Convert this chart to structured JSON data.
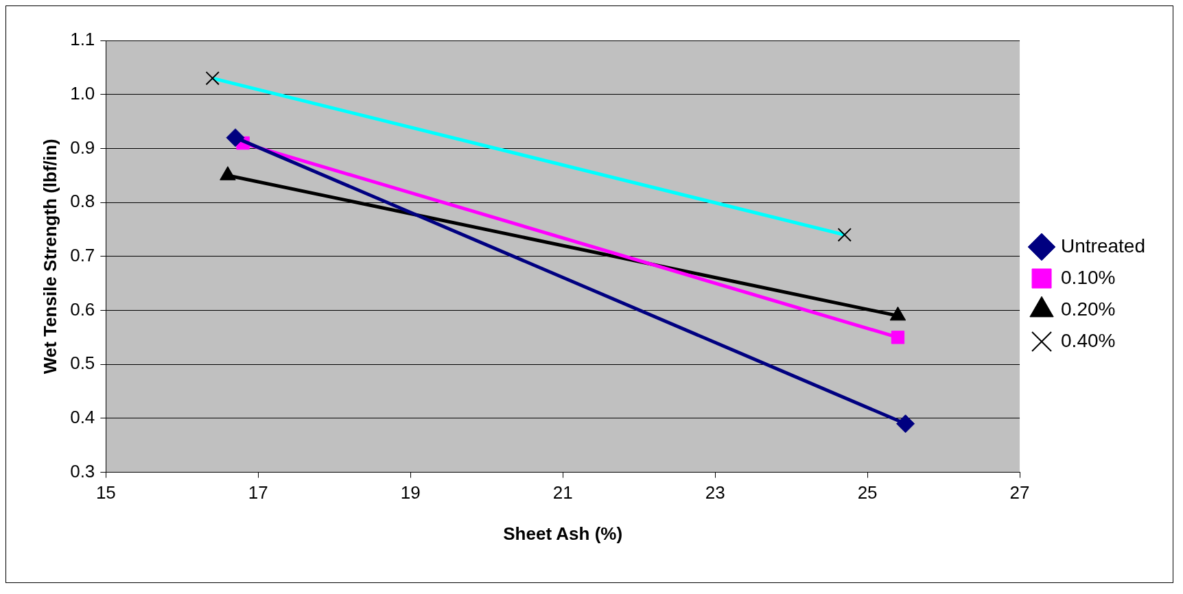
{
  "chart_data": {
    "type": "line",
    "xlabel": "Sheet Ash (%)",
    "ylabel": "Wet Tensile Strength (lbf/in)",
    "xlim": [
      15,
      27
    ],
    "xticks": [
      15,
      17,
      19,
      21,
      23,
      25,
      27
    ],
    "ylim": [
      0.3,
      1.1
    ],
    "yticks": [
      {
        "value": 0.3,
        "label": "0.3"
      },
      {
        "value": 0.4,
        "label": "0.4"
      },
      {
        "value": 0.5,
        "label": "0.5"
      },
      {
        "value": 0.6,
        "label": "0.6"
      },
      {
        "value": 0.7,
        "label": "0.7"
      },
      {
        "value": 0.8,
        "label": "0.8"
      },
      {
        "value": 0.9,
        "label": "0.9"
      },
      {
        "value": 1.0,
        "label": "1.0"
      },
      {
        "value": 1.1,
        "label": "1.1"
      }
    ],
    "grid": "y",
    "legend": "right",
    "series": [
      {
        "name": "Untreated",
        "color": "#000080",
        "marker": "diamond",
        "x": [
          16.7,
          25.5
        ],
        "values": [
          0.92,
          0.39
        ]
      },
      {
        "name": "0.10%",
        "color": "#ff00ff",
        "marker": "square",
        "x": [
          16.8,
          25.4
        ],
        "values": [
          0.91,
          0.55
        ]
      },
      {
        "name": "0.20%",
        "color": "#000000",
        "marker": "triangle",
        "x": [
          16.6,
          25.4
        ],
        "values": [
          0.85,
          0.59
        ]
      },
      {
        "name": "0.40%",
        "color": "#00ffff",
        "marker": "cross",
        "x": [
          16.4,
          24.7
        ],
        "values": [
          1.03,
          0.74
        ]
      }
    ]
  }
}
